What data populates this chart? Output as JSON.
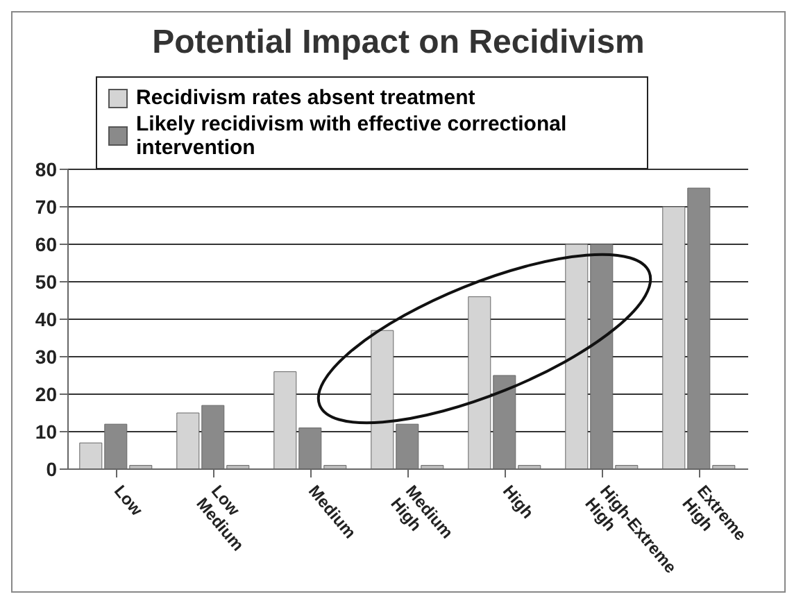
{
  "chart_data": {
    "type": "bar",
    "title": "Potential Impact on Recidivism",
    "categories": [
      "Low",
      "Low Medium",
      "Medium",
      "Medium High",
      "High",
      "High-Extreme High",
      "Extreme High"
    ],
    "series": [
      {
        "name": "Recidivism rates absent treatment",
        "color": "#d4d4d4",
        "values": [
          7,
          15,
          26,
          37,
          46,
          60,
          70
        ]
      },
      {
        "name": "Likely recidivism with effective correctional intervention",
        "color": "#8a8a8a",
        "values": [
          12,
          17,
          11,
          12,
          25,
          60,
          75
        ]
      },
      {
        "color": "#bdbdbd",
        "values": [
          1,
          1,
          1,
          1,
          1,
          1,
          1
        ]
      }
    ],
    "ylim": [
      0,
      80
    ],
    "yticks": [
      0,
      10,
      20,
      30,
      40,
      50,
      60,
      70,
      80
    ],
    "grid": "y",
    "legend": "top"
  }
}
